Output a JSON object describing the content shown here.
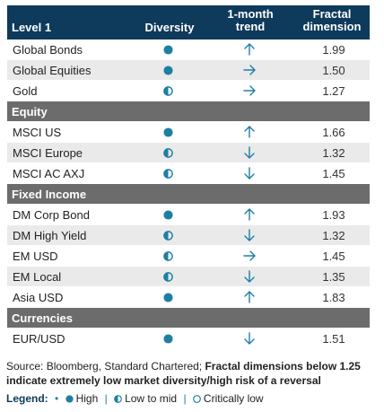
{
  "header": {
    "col_name": "Level 1",
    "col_diversity": "Diversity",
    "col_trend_line1": "1-month",
    "col_trend_line2": "trend",
    "col_fractal_line1": "Fractal",
    "col_fractal_line2": "dimension"
  },
  "colors": {
    "header_bg": "#0e3a5b",
    "section_bg": "#6c6c6c",
    "accent": "#1e7fa3",
    "row_alt": "#eaeaea"
  },
  "rows": [
    {
      "type": "row",
      "name": "Global Bonds",
      "diversity": "high",
      "trend": "up",
      "fractal": "1.99"
    },
    {
      "type": "row",
      "name": "Global Equities",
      "diversity": "high",
      "trend": "right",
      "fractal": "1.50"
    },
    {
      "type": "row",
      "name": "Gold",
      "diversity": "low-to-mid",
      "trend": "right",
      "fractal": "1.27"
    },
    {
      "type": "section",
      "name": "Equity"
    },
    {
      "type": "row",
      "name": "MSCI US",
      "diversity": "high",
      "trend": "up",
      "fractal": "1.66"
    },
    {
      "type": "row",
      "name": "MSCI Europe",
      "diversity": "low-to-mid",
      "trend": "down",
      "fractal": "1.32"
    },
    {
      "type": "row",
      "name": "MSCI AC AXJ",
      "diversity": "low-to-mid",
      "trend": "down",
      "fractal": "1.45"
    },
    {
      "type": "section",
      "name": "Fixed Income"
    },
    {
      "type": "row",
      "name": "DM Corp Bond",
      "diversity": "high",
      "trend": "up",
      "fractal": "1.93"
    },
    {
      "type": "row",
      "name": "DM High Yield",
      "diversity": "low-to-mid",
      "trend": "down",
      "fractal": "1.32"
    },
    {
      "type": "row",
      "name": "EM USD",
      "diversity": "low-to-mid",
      "trend": "right",
      "fractal": "1.45"
    },
    {
      "type": "row",
      "name": "EM Local",
      "diversity": "low-to-mid",
      "trend": "down",
      "fractal": "1.35"
    },
    {
      "type": "row",
      "name": "Asia USD",
      "diversity": "high",
      "trend": "up",
      "fractal": "1.83"
    },
    {
      "type": "section",
      "name": "Currencies"
    },
    {
      "type": "row",
      "name": "EUR/USD",
      "diversity": "high",
      "trend": "down",
      "fractal": "1.51"
    }
  ],
  "source": {
    "plain": "Source: Bloomberg, Standard Chartered; ",
    "bold": "Fractal dimensions below 1.25 indicate extremely low market diversity/high risk of a reversal"
  },
  "legend": {
    "title": "Legend:",
    "high": "High",
    "low_to_mid": "Low to mid",
    "critically_low": "Critically low"
  }
}
